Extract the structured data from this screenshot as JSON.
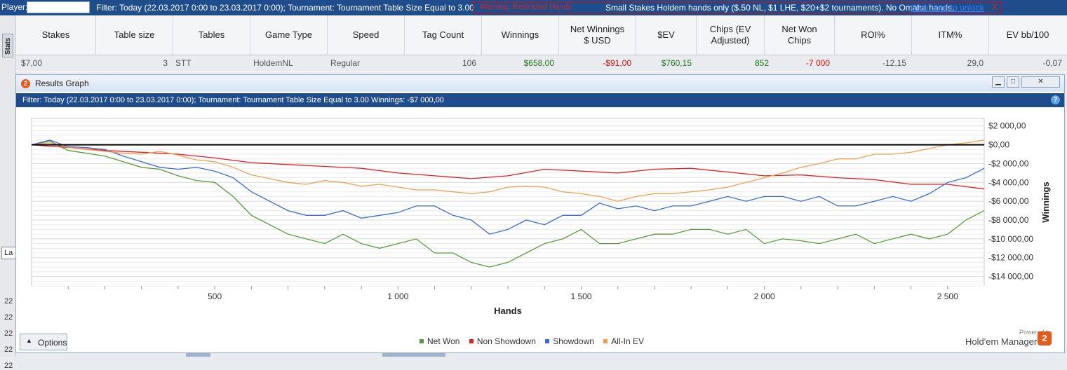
{
  "topbar": {
    "player_label": "Player:",
    "filter_text": "Filter: Today (22.03.2017 0:00 to 23.03.2017 0:00); Tournament: Tournament Table Size Equal to 3.00",
    "warning_label": "Warning: Restricted Hands",
    "warning_text": "Small Stakes Holdem hands only ($.50 NL, $1 LHE, $20+$2 tournaments).  No Omaha hands.",
    "unlock_link": "Click here to unlock",
    "unlock_x": "X"
  },
  "sidebar": {
    "stats_tab": "Stats",
    "la_box": "La",
    "row_numbers": [
      "22",
      "22",
      "22",
      "22",
      "22"
    ]
  },
  "table": {
    "headers": [
      "Stakes",
      "Table size",
      "Tables",
      "Game Type",
      "Speed",
      "Tag Count",
      "Winnings",
      "Net Winnings\n$ USD",
      "$EV",
      "Chips (EV\nAdjusted)",
      "Net Won\nChips",
      "ROI%",
      "ITM%",
      "EV bb/100"
    ],
    "row": [
      "$7,00",
      "3",
      "STT",
      "HoldemNL",
      "Regular",
      "106",
      "$658,00",
      "-$91,00",
      "$760,15",
      "852",
      "-7 000",
      "-12,15",
      "29,0",
      "-0,07"
    ],
    "colors": {
      "positive": "#1a7a1a",
      "negative": "#d01010",
      "neutral": "#555555"
    }
  },
  "results_window": {
    "title": "Results Graph",
    "icon_number": "2",
    "filter_text": "Filter: Today (22.03.2017 0:00 to 23.03.2017 0:00); Tournament: Tournament Table Size Equal to 3.00  Winnings: -$7 000,00",
    "help_icon": "?",
    "options_label": "Options",
    "powered_by": "Powered by",
    "brand": "Hold'em Manager",
    "brand_icon_number": "2"
  },
  "chart_data": {
    "type": "line",
    "xlabel": "Hands",
    "ylabel": "Winnings",
    "xlim": [
      0,
      2600
    ],
    "ylim": [
      -15000,
      2800
    ],
    "xticks": [
      500,
      1000,
      1500,
      2000,
      2500
    ],
    "xtick_labels": [
      "500",
      "1 000",
      "1 500",
      "2 000",
      "2 500"
    ],
    "yticks": [
      2000,
      0,
      -2000,
      -4000,
      -6000,
      -8000,
      -10000,
      -12000,
      -14000
    ],
    "ytick_labels": [
      "$2 000,00",
      "$0,00",
      "-$2 000,00",
      "-$4 000,00",
      "-$6 000,00",
      "-$8 000,00",
      "-$10 000,00",
      "-$12 000,00",
      "-$14 000,00"
    ],
    "grid": true,
    "legend_position": "bottom-center",
    "series": [
      {
        "name": "Net Won",
        "color": "#5a9a3a",
        "x": [
          0,
          50,
          100,
          150,
          200,
          250,
          300,
          350,
          400,
          450,
          500,
          550,
          600,
          650,
          700,
          750,
          800,
          850,
          900,
          950,
          1000,
          1050,
          1100,
          1150,
          1200,
          1250,
          1300,
          1350,
          1400,
          1450,
          1500,
          1550,
          1600,
          1650,
          1700,
          1750,
          1800,
          1850,
          1900,
          1950,
          2000,
          2050,
          2100,
          2150,
          2200,
          2250,
          2300,
          2350,
          2400,
          2450,
          2500,
          2550,
          2600
        ],
        "y": [
          0,
          400,
          -600,
          -900,
          -1200,
          -1800,
          -2400,
          -2600,
          -3300,
          -3800,
          -4000,
          -5500,
          -7500,
          -8500,
          -9500,
          -10000,
          -10500,
          -9500,
          -10500,
          -11000,
          -10500,
          -10000,
          -11500,
          -11500,
          -12500,
          -13000,
          -12500,
          -11500,
          -10500,
          -10000,
          -9000,
          -10500,
          -10500,
          -10000,
          -9500,
          -9500,
          -9000,
          -9000,
          -9500,
          -9000,
          -10500,
          -10000,
          -10200,
          -10500,
          -10000,
          -9500,
          -10500,
          -10000,
          -9500,
          -10000,
          -9500,
          -8000,
          -7000
        ]
      },
      {
        "name": "Non Showdown",
        "color": "#e02020",
        "x": [
          0,
          100,
          200,
          300,
          400,
          500,
          600,
          700,
          800,
          900,
          1000,
          1100,
          1200,
          1300,
          1400,
          1500,
          1600,
          1700,
          1800,
          1900,
          2000,
          2100,
          2200,
          2300,
          2400,
          2500,
          2600
        ],
        "y": [
          0,
          -300,
          -600,
          -800,
          -1000,
          -1400,
          -1900,
          -2100,
          -2300,
          -2500,
          -3000,
          -3300,
          -3600,
          -3300,
          -2600,
          -2800,
          -3000,
          -2600,
          -2500,
          -2900,
          -3300,
          -3200,
          -3500,
          -3700,
          -4200,
          -4200,
          -4700
        ]
      },
      {
        "name": "Showdown",
        "color": "#3a6ad4",
        "x": [
          0,
          50,
          100,
          150,
          200,
          250,
          300,
          350,
          400,
          450,
          500,
          550,
          600,
          650,
          700,
          750,
          800,
          850,
          900,
          950,
          1000,
          1050,
          1100,
          1150,
          1200,
          1250,
          1300,
          1350,
          1400,
          1450,
          1500,
          1550,
          1600,
          1650,
          1700,
          1750,
          1800,
          1850,
          1900,
          1950,
          2000,
          2050,
          2100,
          2150,
          2200,
          2250,
          2300,
          2350,
          2400,
          2450,
          2500,
          2550,
          2600
        ],
        "y": [
          0,
          500,
          -200,
          -300,
          -500,
          -1200,
          -1800,
          -2400,
          -2600,
          -2400,
          -2800,
          -3500,
          -5000,
          -6000,
          -7000,
          -7500,
          -7500,
          -7000,
          -7800,
          -7500,
          -7200,
          -6500,
          -6500,
          -7500,
          -8000,
          -9500,
          -9000,
          -8000,
          -8500,
          -7500,
          -7500,
          -6200,
          -6800,
          -6500,
          -7000,
          -6500,
          -6500,
          -6000,
          -5500,
          -6000,
          -5500,
          -5500,
          -6000,
          -5500,
          -6500,
          -6500,
          -6000,
          -5500,
          -6000,
          -5200,
          -4000,
          -3500,
          -2500
        ]
      },
      {
        "name": "All-In EV",
        "color": "#f0a050",
        "x": [
          0,
          50,
          100,
          150,
          200,
          250,
          300,
          350,
          400,
          450,
          500,
          550,
          600,
          650,
          700,
          750,
          800,
          850,
          900,
          950,
          1000,
          1050,
          1100,
          1150,
          1200,
          1250,
          1300,
          1350,
          1400,
          1450,
          1500,
          1550,
          1600,
          1650,
          1700,
          1750,
          1800,
          1850,
          1900,
          1950,
          2000,
          2050,
          2100,
          2150,
          2200,
          2250,
          2300,
          2350,
          2400,
          2450,
          2500,
          2550,
          2600
        ],
        "y": [
          0,
          200,
          -300,
          -500,
          -700,
          -900,
          -1000,
          -700,
          -1100,
          -1600,
          -1800,
          -2400,
          -3200,
          -3600,
          -4000,
          -4200,
          -3800,
          -4000,
          -4400,
          -4200,
          -4500,
          -4800,
          -4800,
          -5000,
          -5200,
          -5000,
          -4500,
          -4400,
          -4500,
          -5000,
          -5200,
          -5500,
          -6000,
          -5500,
          -5200,
          -5200,
          -5000,
          -4800,
          -4500,
          -4000,
          -3500,
          -3000,
          -2400,
          -2000,
          -1500,
          -1500,
          -1000,
          -1000,
          -800,
          -400,
          0,
          200,
          500
        ]
      }
    ]
  }
}
